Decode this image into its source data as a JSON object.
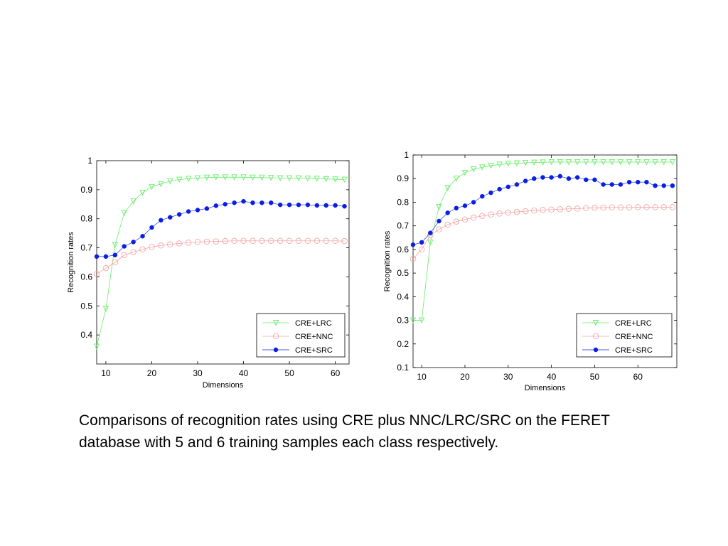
{
  "caption": "Comparisons of recognition rates using CRE plus NNC/LRC/SRC on the FERET database with 5 and 6 training samples each class respectively.",
  "colors": {
    "lrc": "#66ee66",
    "nnc": "#f4a6a6",
    "src": "#0a1ee6"
  },
  "chart_data": [
    {
      "type": "line",
      "xlabel": "Dimensions",
      "ylabel": "Recognition rates",
      "xlim": [
        8,
        63
      ],
      "ylim": [
        0.3,
        1.0
      ],
      "xticks": [
        10,
        20,
        30,
        40,
        50,
        60
      ],
      "yticks": [
        0.4,
        0.5,
        0.6,
        0.7,
        0.8,
        0.9,
        1.0
      ],
      "ytick_labels": [
        "0.4",
        "0.5",
        "0.6",
        "0.7",
        "0.8",
        "0.9",
        "1"
      ],
      "legend_position": "bottom-right",
      "x": [
        8,
        10,
        12,
        14,
        16,
        18,
        20,
        22,
        24,
        26,
        28,
        30,
        32,
        34,
        36,
        38,
        40,
        42,
        44,
        46,
        48,
        50,
        52,
        54,
        56,
        58,
        60,
        62
      ],
      "series": [
        {
          "name": "CRE+LRC",
          "marker": "triangle",
          "values": [
            0.36,
            0.49,
            0.71,
            0.82,
            0.86,
            0.89,
            0.91,
            0.92,
            0.93,
            0.935,
            0.938,
            0.94,
            0.942,
            0.943,
            0.943,
            0.943,
            0.943,
            0.942,
            0.942,
            0.941,
            0.94,
            0.94,
            0.94,
            0.939,
            0.938,
            0.937,
            0.936,
            0.935
          ]
        },
        {
          "name": "CRE+NNC",
          "marker": "circle",
          "values": [
            0.61,
            0.63,
            0.65,
            0.675,
            0.685,
            0.695,
            0.703,
            0.708,
            0.712,
            0.715,
            0.718,
            0.72,
            0.721,
            0.722,
            0.723,
            0.724,
            0.724,
            0.724,
            0.724,
            0.724,
            0.724,
            0.724,
            0.724,
            0.724,
            0.724,
            0.724,
            0.724,
            0.723
          ]
        },
        {
          "name": "CRE+SRC",
          "marker": "dot",
          "values": [
            0.67,
            0.67,
            0.675,
            0.705,
            0.72,
            0.74,
            0.77,
            0.795,
            0.805,
            0.815,
            0.825,
            0.83,
            0.835,
            0.845,
            0.85,
            0.855,
            0.86,
            0.855,
            0.855,
            0.855,
            0.848,
            0.848,
            0.848,
            0.848,
            0.846,
            0.846,
            0.846,
            0.843
          ]
        }
      ]
    },
    {
      "type": "line",
      "xlabel": "Dimensions",
      "ylabel": "Recognition rates",
      "xlim": [
        8,
        69
      ],
      "ylim": [
        0.1,
        1.0
      ],
      "xticks": [
        10,
        20,
        30,
        40,
        50,
        60
      ],
      "yticks": [
        0.1,
        0.2,
        0.3,
        0.4,
        0.5,
        0.6,
        0.7,
        0.8,
        0.9,
        1.0
      ],
      "ytick_labels": [
        "0.1",
        "0.2",
        "0.3",
        "0.4",
        "0.5",
        "0.6",
        "0.7",
        "0.8",
        "0.9",
        "1"
      ],
      "legend_position": "bottom-right",
      "x": [
        8,
        10,
        12,
        14,
        16,
        18,
        20,
        22,
        24,
        26,
        28,
        30,
        32,
        34,
        36,
        38,
        40,
        42,
        44,
        46,
        48,
        50,
        52,
        54,
        56,
        58,
        60,
        62,
        64,
        66,
        68
      ],
      "series": [
        {
          "name": "CRE+LRC",
          "marker": "triangle",
          "values": [
            0.3,
            0.3,
            0.63,
            0.78,
            0.86,
            0.9,
            0.925,
            0.94,
            0.948,
            0.955,
            0.96,
            0.963,
            0.965,
            0.967,
            0.968,
            0.969,
            0.97,
            0.97,
            0.97,
            0.97,
            0.97,
            0.97,
            0.97,
            0.97,
            0.97,
            0.97,
            0.97,
            0.97,
            0.97,
            0.97,
            0.97
          ]
        },
        {
          "name": "CRE+NNC",
          "marker": "circle",
          "values": [
            0.56,
            0.6,
            0.66,
            0.685,
            0.705,
            0.718,
            0.727,
            0.735,
            0.742,
            0.748,
            0.752,
            0.756,
            0.759,
            0.762,
            0.765,
            0.767,
            0.769,
            0.77,
            0.772,
            0.773,
            0.775,
            0.776,
            0.777,
            0.778,
            0.778,
            0.778,
            0.779,
            0.779,
            0.779,
            0.779,
            0.779
          ]
        },
        {
          "name": "CRE+SRC",
          "marker": "dot",
          "values": [
            0.62,
            0.63,
            0.67,
            0.72,
            0.755,
            0.775,
            0.785,
            0.8,
            0.825,
            0.84,
            0.855,
            0.865,
            0.875,
            0.89,
            0.9,
            0.905,
            0.905,
            0.91,
            0.9,
            0.905,
            0.895,
            0.895,
            0.875,
            0.875,
            0.875,
            0.885,
            0.885,
            0.885,
            0.87,
            0.87,
            0.87
          ]
        }
      ]
    }
  ]
}
